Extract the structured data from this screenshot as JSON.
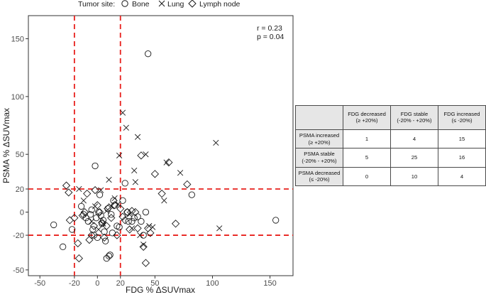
{
  "legend": {
    "title": "Tumor site:",
    "items": [
      {
        "label": "Bone",
        "shape": "circle"
      },
      {
        "label": "Lung",
        "shape": "cross"
      },
      {
        "label": "Lymph node",
        "shape": "diamond"
      }
    ]
  },
  "stats": {
    "r": "r = 0.23",
    "p": "p = 0.04"
  },
  "chart_data": {
    "type": "scatter",
    "title": "",
    "xlabel": "FDG % ΔSUVmax",
    "ylabel": "PSMA % ΔSUVmax",
    "xlim": [
      -60,
      170
    ],
    "ylim": [
      -55,
      170
    ],
    "xticks": [
      -50,
      -20,
      0,
      20,
      50,
      100,
      150
    ],
    "yticks": [
      -50,
      -20,
      0,
      20,
      50,
      100,
      150
    ],
    "reference_lines": {
      "x": [
        -20,
        20
      ],
      "y": [
        -20,
        20
      ],
      "style": "dashed",
      "color": "#e8201c"
    },
    "grid": false,
    "legend_position": "top",
    "series": [
      {
        "name": "Bone",
        "marker": "circle",
        "points": [
          [
            -38,
            -11
          ],
          [
            -30,
            -30
          ],
          [
            -22,
            -15
          ],
          [
            -14,
            5
          ],
          [
            -12,
            -2
          ],
          [
            -10,
            -5
          ],
          [
            -8,
            -8
          ],
          [
            -6,
            -2
          ],
          [
            -5,
            2
          ],
          [
            -4,
            -15
          ],
          [
            -3,
            -20
          ],
          [
            -2,
            40
          ],
          [
            -1,
            -5
          ],
          [
            0,
            -22
          ],
          [
            1,
            0
          ],
          [
            2,
            15
          ],
          [
            3,
            -3
          ],
          [
            4,
            -10
          ],
          [
            5,
            -7
          ],
          [
            6,
            -17
          ],
          [
            7,
            -25
          ],
          [
            8,
            -40
          ],
          [
            9,
            3
          ],
          [
            10,
            -38
          ],
          [
            11,
            -37
          ],
          [
            12,
            -2
          ],
          [
            13,
            -18
          ],
          [
            14,
            10
          ],
          [
            15,
            6
          ],
          [
            17,
            -12
          ],
          [
            19,
            -13
          ],
          [
            22,
            10
          ],
          [
            24,
            25
          ],
          [
            26,
            0
          ],
          [
            27,
            -8
          ],
          [
            30,
            -8
          ],
          [
            32,
            -5
          ],
          [
            35,
            -4
          ],
          [
            38,
            -8
          ],
          [
            40,
            -20
          ],
          [
            42,
            0
          ],
          [
            44,
            137
          ],
          [
            82,
            15
          ],
          [
            155,
            -7
          ]
        ]
      },
      {
        "name": "Lung",
        "marker": "cross",
        "points": [
          [
            -16,
            20
          ],
          [
            -12,
            10
          ],
          [
            -5,
            -8
          ],
          [
            -2,
            5
          ],
          [
            1,
            -15
          ],
          [
            3,
            19
          ],
          [
            5,
            -10
          ],
          [
            8,
            1
          ],
          [
            10,
            28
          ],
          [
            12,
            5
          ],
          [
            15,
            12
          ],
          [
            18,
            7
          ],
          [
            19,
            49
          ],
          [
            22,
            86
          ],
          [
            25,
            73
          ],
          [
            28,
            -2
          ],
          [
            30,
            -14
          ],
          [
            32,
            36
          ],
          [
            33,
            26
          ],
          [
            35,
            65
          ],
          [
            37,
            -20
          ],
          [
            40,
            -28
          ],
          [
            42,
            50
          ],
          [
            45,
            -12
          ],
          [
            48,
            -13
          ],
          [
            58,
            10
          ],
          [
            60,
            43
          ],
          [
            72,
            34
          ],
          [
            103,
            60
          ],
          [
            106,
            -14
          ]
        ]
      },
      {
        "name": "Lymph node",
        "marker": "diamond",
        "points": [
          [
            -27,
            23
          ],
          [
            -25,
            17
          ],
          [
            -24,
            -7
          ],
          [
            -20,
            -5
          ],
          [
            -17,
            -27
          ],
          [
            -16,
            -40
          ],
          [
            -13,
            -3
          ],
          [
            -11,
            0
          ],
          [
            -9,
            16
          ],
          [
            -7,
            -24
          ],
          [
            -5,
            -20
          ],
          [
            -3,
            -12
          ],
          [
            -2,
            19
          ],
          [
            0,
            6
          ],
          [
            2,
            0
          ],
          [
            4,
            -9
          ],
          [
            6,
            -22
          ],
          [
            8,
            -12
          ],
          [
            10,
            4
          ],
          [
            12,
            -5
          ],
          [
            15,
            6
          ],
          [
            17,
            -20
          ],
          [
            20,
            3
          ],
          [
            22,
            -4
          ],
          [
            24,
            -7
          ],
          [
            26,
            0
          ],
          [
            28,
            -15
          ],
          [
            30,
            1
          ],
          [
            33,
            0
          ],
          [
            35,
            -14
          ],
          [
            38,
            49
          ],
          [
            40,
            -30
          ],
          [
            42,
            -44
          ],
          [
            44,
            -14
          ],
          [
            46,
            -18
          ],
          [
            50,
            33
          ],
          [
            56,
            16
          ],
          [
            62,
            43
          ],
          [
            68,
            -10
          ],
          [
            78,
            24
          ]
        ]
      }
    ]
  },
  "table": {
    "headers": [
      [
        "FDG decreased",
        "(≥ +20%)"
      ],
      [
        "FDG stable",
        "(-20% - +20%)"
      ],
      [
        "FDG increased",
        "(≤ -20%)"
      ]
    ],
    "rows": [
      {
        "label": [
          "PSMA increased",
          "(≥ +20%)"
        ],
        "values": [
          "1",
          "4",
          "15"
        ]
      },
      {
        "label": [
          "PSMA stable",
          "(-20% - +20%)"
        ],
        "values": [
          "5",
          "25",
          "16"
        ]
      },
      {
        "label": [
          "PSMA decreased",
          "(≤ -20%)"
        ],
        "values": [
          "0",
          "10",
          "4"
        ]
      }
    ]
  },
  "colors": {
    "reference_line": "#e8201c",
    "marker": "#1a1a1a",
    "table_header": "#e6e6e6"
  }
}
